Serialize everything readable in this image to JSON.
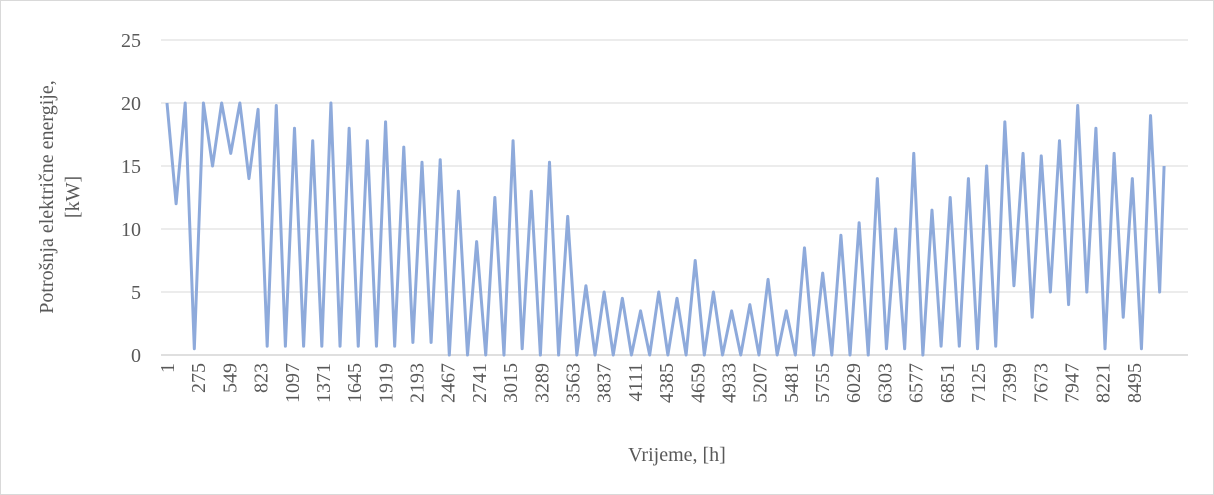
{
  "chart_data": {
    "type": "line",
    "y_label": "Potrošnja električne energije,",
    "y_label_unit": "[kW]",
    "x_label": "Vrijeme, [h]",
    "xlim": [
      1,
      8970
    ],
    "xticks": [
      1,
      275,
      549,
      823,
      1097,
      1371,
      1645,
      1919,
      2193,
      2467,
      2741,
      3015,
      3289,
      3563,
      3837,
      4111,
      4385,
      4659,
      4933,
      5207,
      5481,
      5755,
      6029,
      6303,
      6577,
      6851,
      7125,
      7399,
      7673,
      7947,
      8221,
      8495
    ],
    "ylim": [
      0,
      25
    ],
    "yticks": [
      0,
      5,
      10,
      15,
      20,
      25
    ],
    "grid": true,
    "x": [
      1,
      81,
      161,
      241,
      321,
      401,
      481,
      561,
      641,
      721,
      801,
      881,
      961,
      1041,
      1121,
      1201,
      1281,
      1361,
      1441,
      1521,
      1601,
      1681,
      1761,
      1841,
      1921,
      2001,
      2081,
      2161,
      2241,
      2321,
      2401,
      2481,
      2561,
      2641,
      2721,
      2801,
      2881,
      2961,
      3041,
      3121,
      3201,
      3281,
      3361,
      3441,
      3521,
      3601,
      3681,
      3761,
      3841,
      3921,
      4001,
      4081,
      4161,
      4241,
      4321,
      4401,
      4481,
      4561,
      4641,
      4721,
      4801,
      4881,
      4961,
      5041,
      5121,
      5201,
      5281,
      5361,
      5441,
      5521,
      5601,
      5681,
      5761,
      5841,
      5921,
      6001,
      6081,
      6161,
      6241,
      6321,
      6401,
      6481,
      6561,
      6641,
      6721,
      6801,
      6881,
      6961,
      7041,
      7121,
      7201,
      7281,
      7361,
      7441,
      7521,
      7601,
      7681,
      7761,
      7841,
      7921,
      8001,
      8081,
      8161,
      8241,
      8321,
      8401,
      8481,
      8561,
      8641,
      8721,
      8760
    ],
    "series": [
      {
        "color": "#8eaadb",
        "values": [
          20,
          12,
          20,
          0.5,
          20,
          15,
          20,
          16,
          20,
          14,
          19.5,
          0.7,
          19.8,
          0.7,
          18,
          0.7,
          17,
          0.7,
          20,
          0.7,
          18,
          0.7,
          17,
          0.7,
          18.5,
          0.7,
          16.5,
          1,
          15.3,
          1,
          15.5,
          0,
          13,
          0,
          9,
          0,
          12.5,
          0,
          17,
          0.5,
          13,
          0,
          15.3,
          0,
          11,
          0,
          5.5,
          0,
          5,
          0,
          4.5,
          0,
          3.5,
          0,
          5,
          0,
          4.5,
          0,
          7.5,
          0,
          5,
          0,
          3.5,
          0,
          4,
          0,
          6,
          0,
          3.5,
          0,
          8.5,
          0,
          6.5,
          0,
          9.5,
          0,
          10.5,
          0,
          14,
          0.5,
          10,
          0.5,
          16,
          0,
          11.5,
          0.7,
          12.5,
          0.7,
          14,
          0.5,
          15,
          0.7,
          18.5,
          5.5,
          16,
          3,
          15.8,
          5,
          17,
          4,
          19.8,
          5,
          18,
          0.5,
          16,
          3,
          14,
          0.5,
          19,
          5,
          15
        ]
      }
    ]
  }
}
